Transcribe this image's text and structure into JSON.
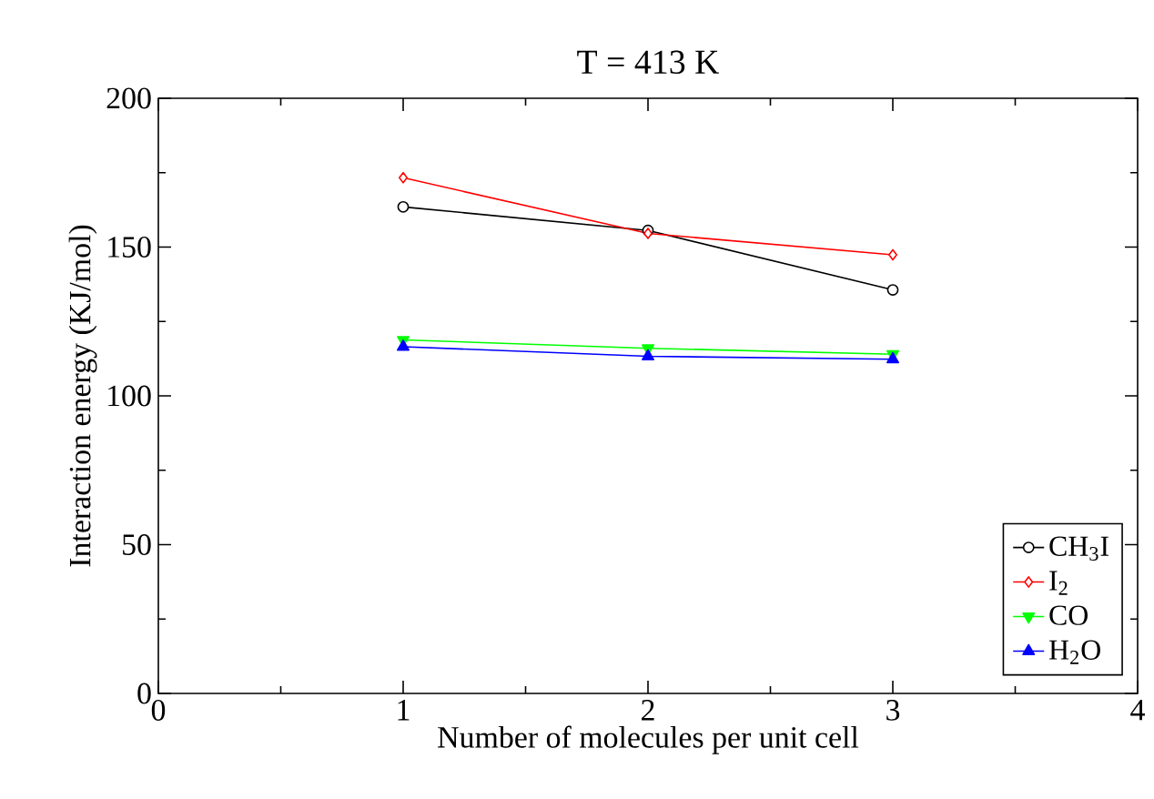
{
  "chart_data": {
    "type": "line",
    "title": "T = 413 K",
    "xlabel": "Number of molecules per unit cell",
    "ylabel": "Interaction energy (KJ/mol)",
    "x": [
      1,
      2,
      3
    ],
    "series": [
      {
        "name": "CH$_{3}$I",
        "color": "#000000",
        "marker": "circle",
        "values": [
          163.5,
          155.6,
          135.6
        ]
      },
      {
        "name": "I$_{2}$",
        "color": "#ff0000",
        "marker": "diamond",
        "values": [
          173.3,
          154.6,
          147.4
        ]
      },
      {
        "name": "CO",
        "color": "#00ff00",
        "marker": "triangle_down",
        "values": [
          118.8,
          116,
          114
        ]
      },
      {
        "name": "H$_{2}$O",
        "color": "#0000ff",
        "marker": "triangle",
        "values": [
          116.5,
          113.3,
          112.3
        ]
      }
    ],
    "xlim": [
      0,
      4
    ],
    "ylim": [
      0,
      200
    ],
    "xticks": [
      0,
      1,
      2,
      3,
      4
    ],
    "yticks": [
      0,
      50,
      100,
      150,
      200
    ],
    "legend": "bottom right",
    "grid": false,
    "line_style": "solid"
  }
}
